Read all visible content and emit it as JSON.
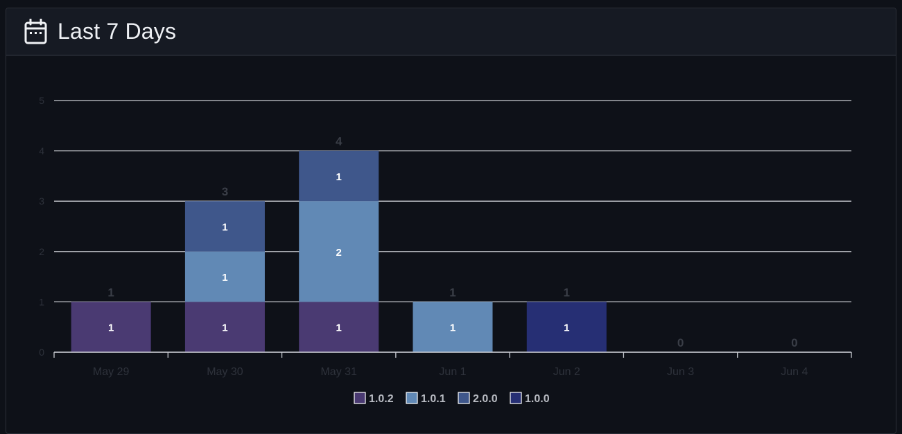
{
  "header": {
    "title": "Last 7 Days",
    "icon": "calendar-icon"
  },
  "colors": {
    "1.0.2": "#4a3a72",
    "1.0.1": "#6189b5",
    "2.0.0": "#3f578b",
    "1.0.0": "#262f74",
    "grid": "#c9ccd2",
    "tick_label": "#2e323b",
    "total_label": "#3a3e47",
    "segment_label": "#ffffff",
    "legend_text": "#b9bcc3"
  },
  "chart_data": {
    "type": "bar",
    "stacked": true,
    "title": "",
    "xlabel": "",
    "ylabel": "",
    "ylim": [
      0,
      5
    ],
    "yticks": [
      0,
      1,
      2,
      3,
      4,
      5
    ],
    "grid": true,
    "legend_position": "bottom",
    "categories": [
      "May 29",
      "May 30",
      "May 31",
      "Jun 1",
      "Jun 2",
      "Jun 3",
      "Jun 4"
    ],
    "series": [
      {
        "name": "1.0.2",
        "values": [
          1,
          1,
          1,
          0,
          0,
          0,
          0
        ]
      },
      {
        "name": "1.0.1",
        "values": [
          0,
          1,
          2,
          1,
          0,
          0,
          0
        ]
      },
      {
        "name": "2.0.0",
        "values": [
          0,
          1,
          1,
          0,
          0,
          0,
          0
        ]
      },
      {
        "name": "1.0.0",
        "values": [
          0,
          0,
          0,
          0,
          1,
          0,
          0
        ]
      }
    ],
    "totals": [
      1,
      3,
      4,
      1,
      1,
      0,
      0
    ]
  }
}
